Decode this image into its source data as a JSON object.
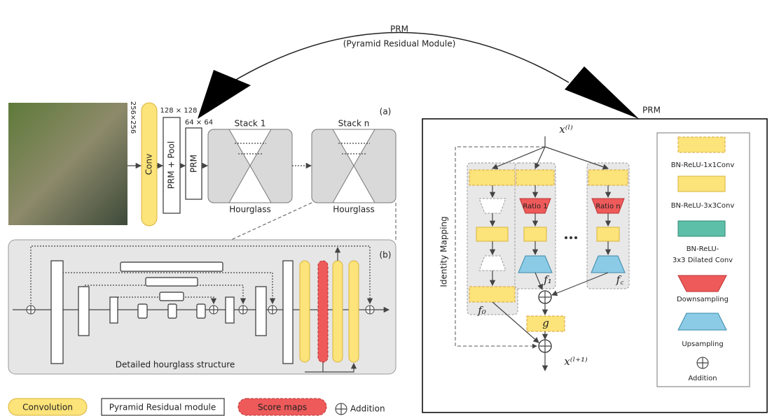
{
  "top_arc": {
    "title": "PRM",
    "subtitle": "(Pyramid Residual Module)"
  },
  "panel_a": {
    "label": "(a)",
    "input_size": "256×256",
    "conv": "Conv",
    "size_128": "128 × 128",
    "prm_pool": "PRM + Pool",
    "size_64": "64 × 64",
    "prm": "PRM",
    "stack_1": "Stack 1",
    "stack_n": "Stack n",
    "hourglass_1": "Hourglass",
    "hourglass_2": "Hourglass"
  },
  "panel_b": {
    "label": "(b)",
    "caption": "Detailed hourglass structure"
  },
  "legend": [
    "Convolution",
    "Pyramid Residual module",
    "Score maps",
    "Addition"
  ],
  "prm_panel": {
    "title": "PRM",
    "input": "x⁽ˡ⁾",
    "output": "x⁽ˡ⁺¹⁾",
    "identity": "Identity Mapping",
    "ratio_1": "Ratio 1",
    "ratio_n": "Ratio n",
    "f0": "f₀",
    "f1": "f₁",
    "fc": "f꜀",
    "g": "g",
    "legend": [
      "BN-ReLU-1x1Conv",
      "BN-ReLU-3x3Conv",
      "BN-ReLU-",
      "3x3 Dilated Conv",
      "Downsampling",
      "Upsampling",
      "Addition"
    ]
  }
}
